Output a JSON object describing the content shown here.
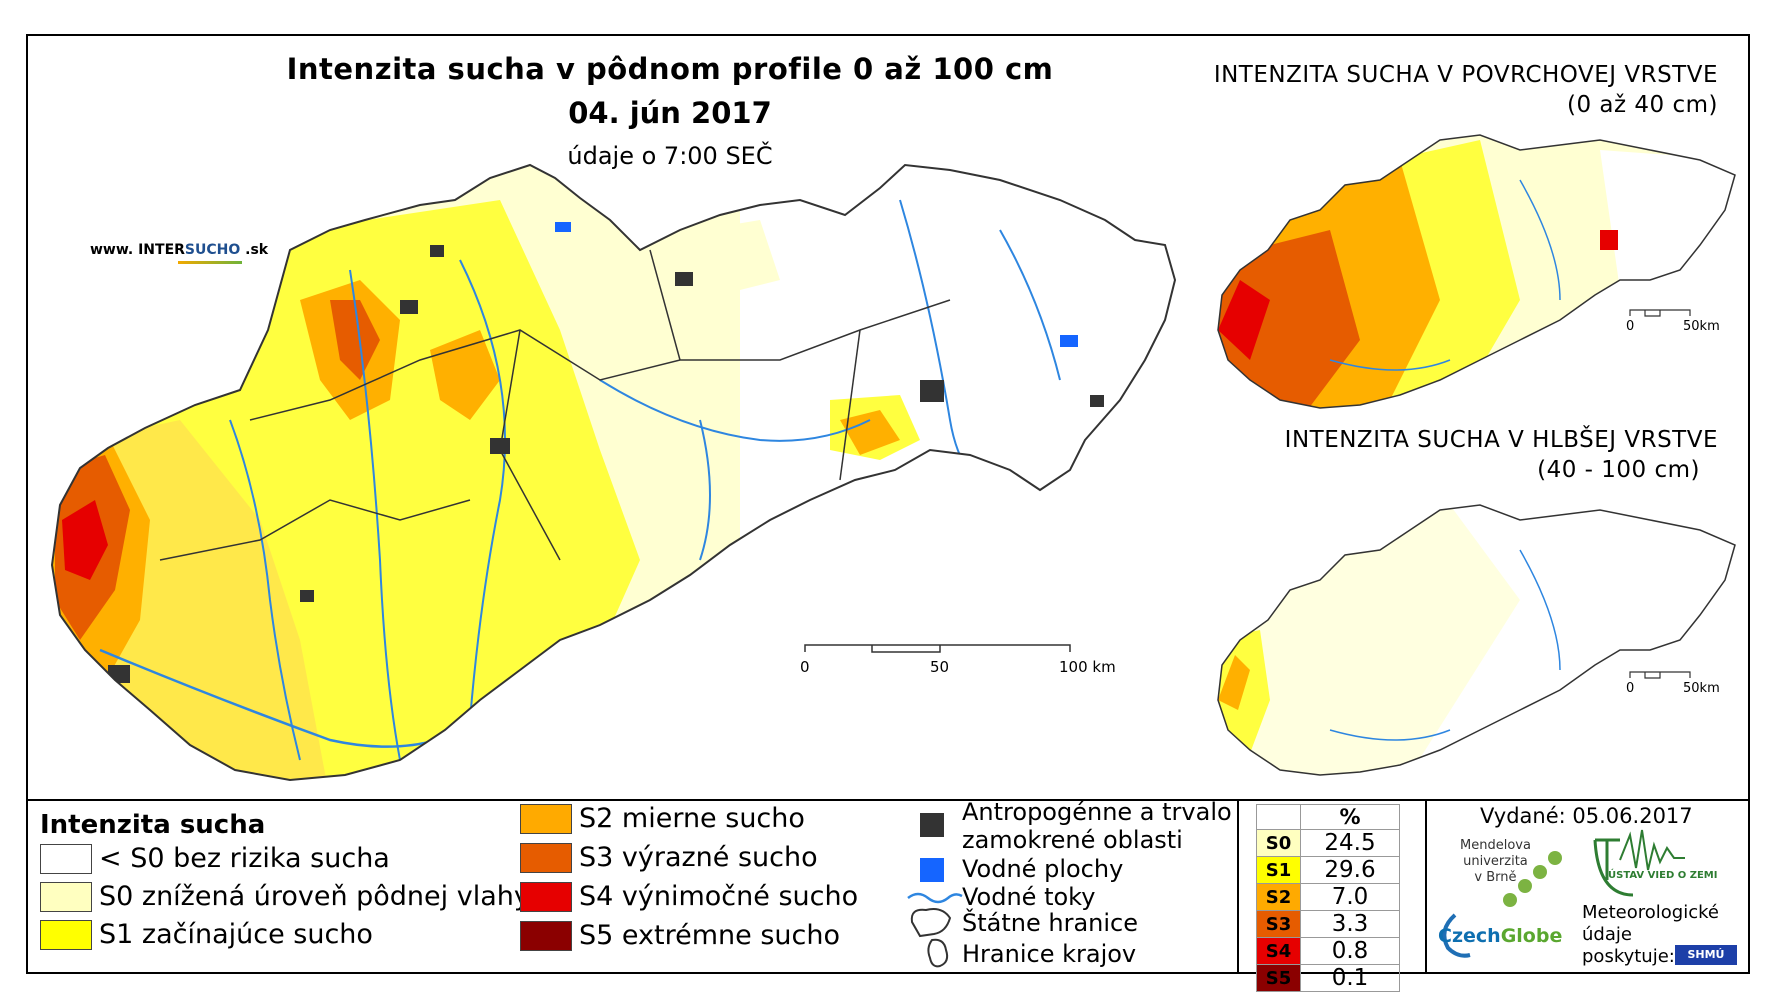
{
  "header": {
    "title": "Intenzita sucha v pôdnom profile 0 až 100 cm",
    "date": "04. jún 2017",
    "time": "údaje o 7:00 SEČ",
    "website_prefix": "www. INTER",
    "website_accent": "SUCHO",
    "website_suffix": " .sk"
  },
  "insets": {
    "surface_title": "INTENZITA SUCHA V POVRCHOVEJ VRSTVE",
    "surface_depth": "(0 až 40 cm)",
    "deep_title": "INTENZITA SUCHA V HLBŠEJ VRSTVE",
    "deep_depth": "(40 - 100 cm)"
  },
  "scale_main": {
    "zero": "0",
    "mid": "50",
    "end": "100 km"
  },
  "scale_inset": {
    "zero": "0",
    "end": "50km"
  },
  "legend": {
    "title": "Intenzita sucha",
    "classes": [
      {
        "label": "< S0 bez rizika sucha",
        "color": "#ffffff"
      },
      {
        "label": "S0 znížená úroveň pôdnej vlahy",
        "color": "#ffffc0"
      },
      {
        "label": "S1 začínajúce sucho",
        "color": "#ffff00"
      },
      {
        "label": "S2 mierne sucho",
        "color": "#ffaa00"
      },
      {
        "label": "S3 výrazné sucho",
        "color": "#e65c00"
      },
      {
        "label": "S4 výnimočné sucho",
        "color": "#e60000"
      },
      {
        "label": "S5 extrémne sucho",
        "color": "#8b0000"
      }
    ]
  },
  "symbols": {
    "anthro_line1": "Antropogénne a trvalo",
    "anthro_line2": "zamokrené oblasti",
    "water": "Vodné plochy",
    "rivers": "Vodné toky",
    "borders": "Štátne hranice",
    "regions": "Hranice krajov"
  },
  "percent_table": {
    "header": "%",
    "rows": [
      {
        "code": "S0",
        "value": "24.5",
        "color": "#ffffc0"
      },
      {
        "code": "S1",
        "value": "29.6",
        "color": "#ffff00"
      },
      {
        "code": "S2",
        "value": "7.0",
        "color": "#ffaa00"
      },
      {
        "code": "S3",
        "value": "3.3",
        "color": "#e65c00"
      },
      {
        "code": "S4",
        "value": "0.8",
        "color": "#e60000"
      },
      {
        "code": "S5",
        "value": "0.1",
        "color": "#8b0000"
      }
    ]
  },
  "footer": {
    "issued": "Vydané: 05.06.2017",
    "mendel_line1": "Mendelova",
    "mendel_line2": "univerzita",
    "mendel_line3": "v Brně",
    "czech_a": "Czech",
    "czech_b": "Globe",
    "uvoz": "ÚSTAV VIED O ZEMI",
    "meteo_line1": "Meteorologické",
    "meteo_line2": "údaje",
    "meteo_line3": "poskytuje:",
    "shmu": "SHMÚ"
  }
}
